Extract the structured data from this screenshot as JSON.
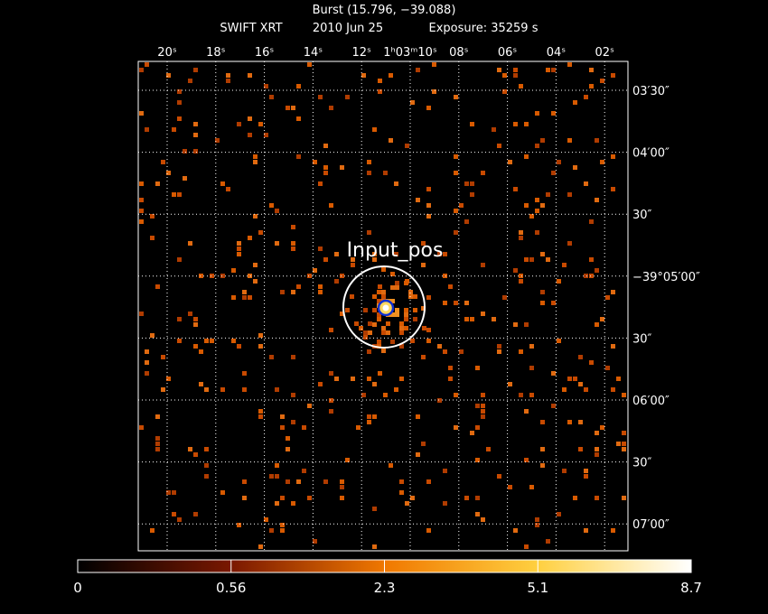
{
  "title": "Burst (15.796, −39.088)",
  "subtitle": {
    "instrument": "SWIFT XRT",
    "date": "2010 Jun 25",
    "exposure": "Exposure: 35259 s"
  },
  "ra_labels": [
    "20ˢ",
    "18ˢ",
    "16ˢ",
    "14ˢ",
    "12ˢ",
    "1ʰ03ᵐ10ˢ",
    "08ˢ",
    "06ˢ",
    "04ˢ",
    "02ˢ"
  ],
  "dec_labels": [
    "03′30″",
    "04′00″",
    "30″",
    "−39°05′00″",
    "30″",
    "06′00″",
    "30″",
    "07′00″"
  ],
  "annotation": "Input_pos",
  "colorbar_labels": [
    "0",
    "0.56",
    "2.3",
    "5.1",
    "8.7"
  ]
}
